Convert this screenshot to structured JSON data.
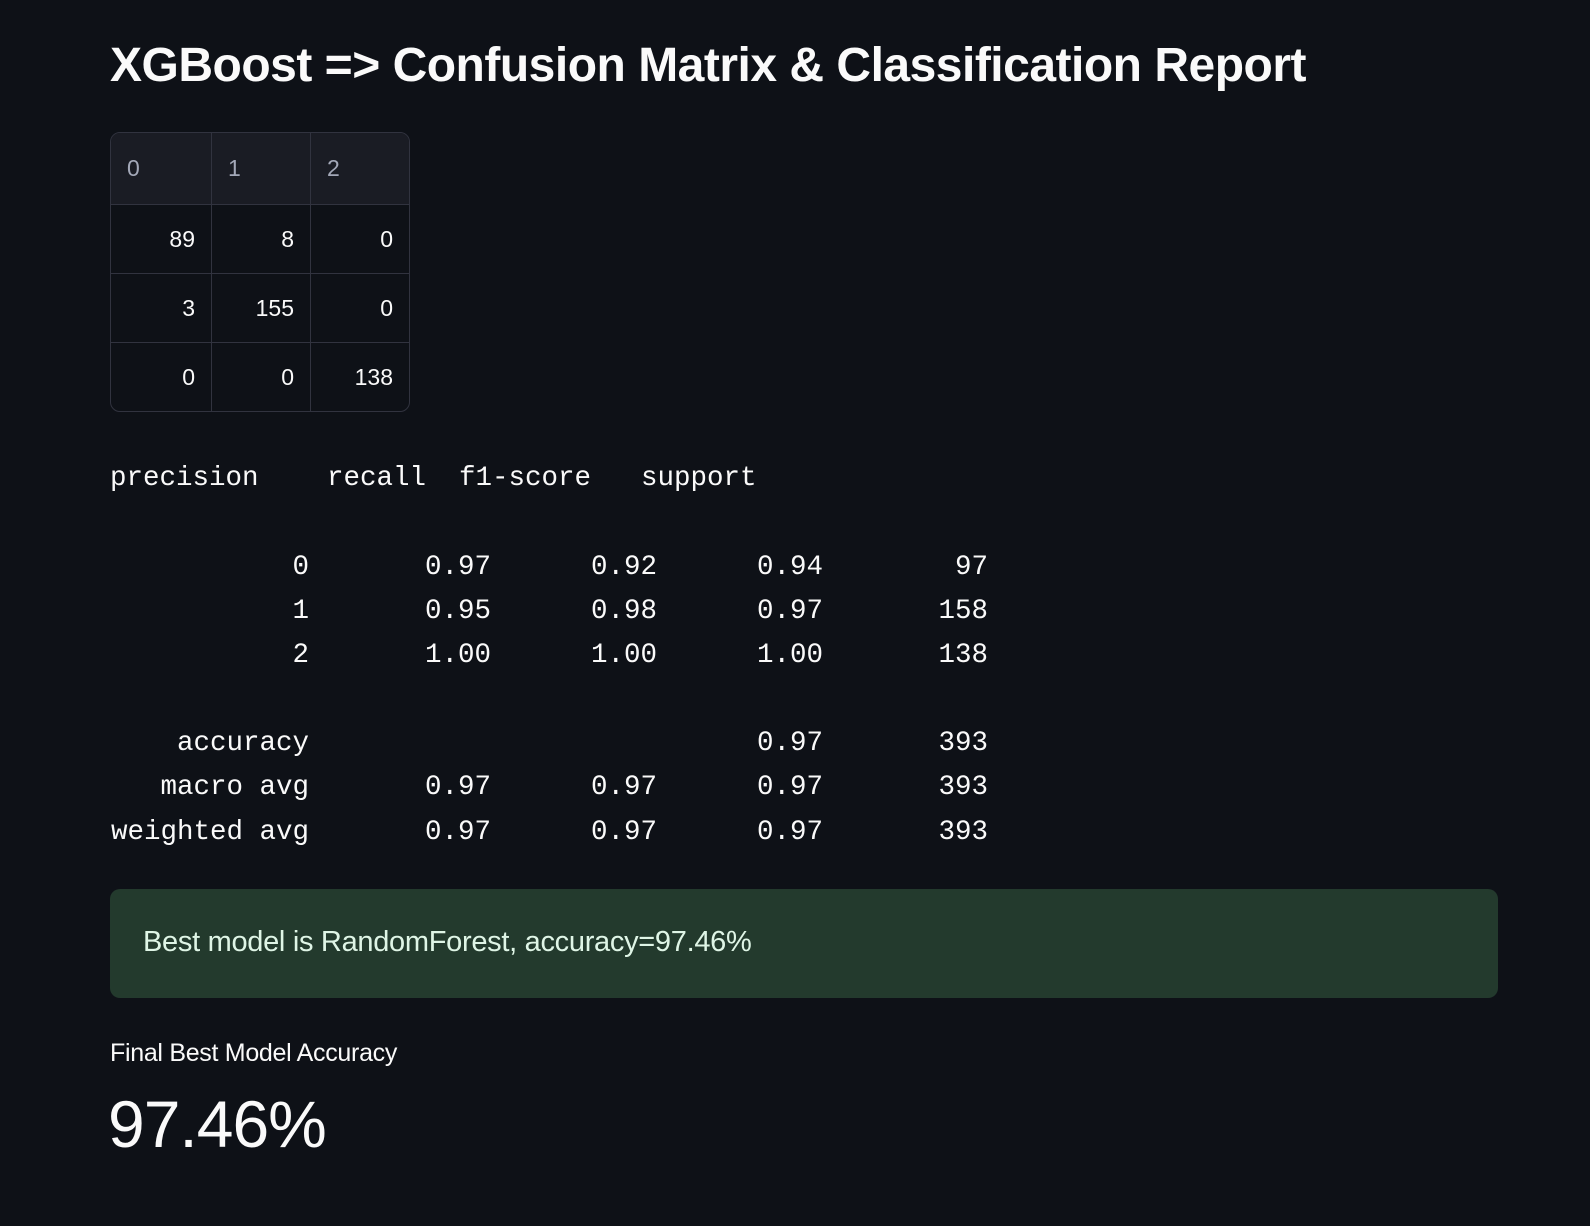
{
  "header": {
    "title": "XGBoost => Confusion Matrix & Classification Report"
  },
  "confusion_matrix": {
    "columns": [
      "0",
      "1",
      "2"
    ],
    "rows": [
      [
        "89",
        "8",
        "0"
      ],
      [
        "3",
        "155",
        "0"
      ],
      [
        "0",
        "0",
        "138"
      ]
    ]
  },
  "report": {
    "columns": [
      "precision",
      "recall",
      "f1-score",
      "support"
    ],
    "rows": [
      {
        "label": "0",
        "values": [
          "0.97",
          "0.92",
          "0.94",
          "97"
        ]
      },
      {
        "label": "1",
        "values": [
          "0.95",
          "0.98",
          "0.97",
          "158"
        ]
      },
      {
        "label": "2",
        "values": [
          "1.00",
          "1.00",
          "1.00",
          "138"
        ]
      },
      {
        "label": "accuracy",
        "values": [
          null,
          null,
          "0.97",
          "393"
        ]
      },
      {
        "label": "macro avg",
        "values": [
          "0.97",
          "0.97",
          "0.97",
          "393"
        ]
      },
      {
        "label": "weighted avg",
        "values": [
          "0.97",
          "0.97",
          "0.97",
          "393"
        ]
      }
    ]
  },
  "alert": {
    "text": "Best model is RandomForest, accuracy=97.46%"
  },
  "metric": {
    "label": "Final Best Model Accuracy",
    "value": "97.46%"
  }
}
